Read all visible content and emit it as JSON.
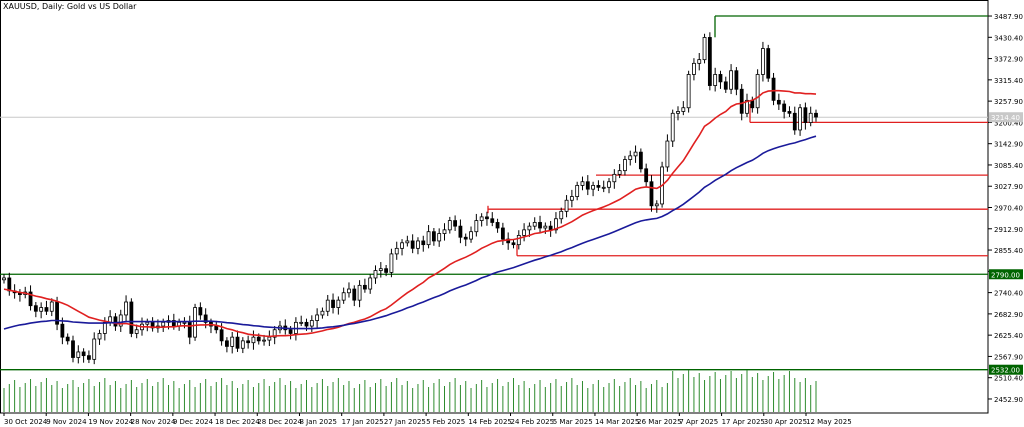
{
  "chart_data": {
    "type": "candlestick",
    "title": "XAUUSD, Daily:  Gold vs US Dollar",
    "y_axis": {
      "ylim": [
        2415,
        3515
      ],
      "ticks": [
        "3487.90",
        "3430.40",
        "3372.90",
        "3315.40",
        "3257.90",
        "3200.40",
        "3142.90",
        "3085.40",
        "3027.90",
        "2970.40",
        "2912.90",
        "2855.40",
        "2797.90",
        "2740.40",
        "2682.90",
        "2625.40",
        "2567.90",
        "2510.40",
        "2452.90"
      ],
      "current_price": "3214.40"
    },
    "x_axis": {
      "labels": [
        "30 Oct 2024",
        "9 Nov 2024",
        "19 Nov 2024",
        "28 Nov 2024",
        "9 Dec 2024",
        "18 Dec 2024",
        "28 Dec 2024",
        "8 Jan 2025",
        "17 Jan 2025",
        "27 Jan 2025",
        "5 Feb 2025",
        "14 Feb 2025",
        "24 Feb 2025",
        "5 Mar 2025",
        "14 Mar 2025",
        "26 Mar 2025",
        "7 Apr 2025",
        "17 Apr 2025",
        "30 Apr 2025",
        "12 May 2025"
      ]
    },
    "closes": [
      2780,
      2745,
      2740,
      2735,
      2742,
      2705,
      2690,
      2700,
      2690,
      2715,
      2655,
      2620,
      2610,
      2565,
      2580,
      2570,
      2560,
      2615,
      2630,
      2660,
      2675,
      2650,
      2680,
      2715,
      2630,
      2640,
      2655,
      2660,
      2645,
      2650,
      2660,
      2665,
      2650,
      2660,
      2660,
      2620,
      2700,
      2680,
      2660,
      2650,
      2640,
      2610,
      2595,
      2620,
      2590,
      2610,
      2605,
      2620,
      2610,
      2612,
      2620,
      2640,
      2650,
      2640,
      2630,
      2660,
      2660,
      2650,
      2665,
      2680,
      2690,
      2720,
      2700,
      2720,
      2740,
      2750,
      2720,
      2760,
      2750,
      2780,
      2800,
      2805,
      2795,
      2845,
      2860,
      2875,
      2880,
      2860,
      2880,
      2870,
      2905,
      2880,
      2900,
      2910,
      2935,
      2920,
      2890,
      2885,
      2905,
      2935,
      2945,
      2940,
      2930,
      2915,
      2885,
      2875,
      2870,
      2895,
      2910,
      2920,
      2930,
      2915,
      2920,
      2910,
      2940,
      2960,
      2990,
      3000,
      3030,
      3040,
      3020,
      3030,
      3025,
      3025,
      3040,
      3060,
      3070,
      3100,
      3110,
      3120,
      3075,
      3040,
      2975,
      2980,
      3080,
      3150,
      3225,
      3230,
      3240,
      3330,
      3360,
      3370,
      3430,
      3300,
      3330,
      3310,
      3290,
      3340,
      3290,
      3225,
      3260,
      3240,
      3330,
      3400,
      3320,
      3260,
      3250,
      3230,
      3225,
      3180,
      3240,
      3200,
      3225,
      3215
    ],
    "series": [
      {
        "name": "",
        "color": "#e02020",
        "values": [
          2750,
          2747,
          2744,
          2741,
          2739,
          2735,
          2731,
          2728,
          2724,
          2721,
          2717,
          2712,
          2706,
          2698,
          2690,
          2682,
          2674,
          2670,
          2666,
          2663,
          2660,
          2657,
          2656,
          2657,
          2654,
          2651,
          2648,
          2648,
          2647,
          2647,
          2647,
          2648,
          2648,
          2650,
          2651,
          2650,
          2652,
          2653,
          2653,
          2654,
          2652,
          2648,
          2643,
          2640,
          2635,
          2632,
          2628,
          2626,
          2625,
          2623,
          2622,
          2623,
          2624,
          2624,
          2625,
          2627,
          2628,
          2629,
          2631,
          2634,
          2637,
          2641,
          2643,
          2647,
          2652,
          2657,
          2660,
          2665,
          2669,
          2675,
          2683,
          2691,
          2697,
          2707,
          2718,
          2729,
          2740,
          2749,
          2759,
          2768,
          2780,
          2788,
          2797,
          2806,
          2816,
          2824,
          2830,
          2836,
          2843,
          2851,
          2860,
          2867,
          2874,
          2879,
          2881,
          2883,
          2884,
          2887,
          2891,
          2895,
          2900,
          2902,
          2906,
          2908,
          2913,
          2918,
          2925,
          2932,
          2941,
          2950,
          2956,
          2962,
          2967,
          2972,
          2978,
          2985,
          2992,
          3001,
          3010,
          3020,
          3024,
          3026,
          3024,
          3022,
          3030,
          3044,
          3063,
          3080,
          3097,
          3120,
          3143,
          3165,
          3190,
          3200,
          3212,
          3222,
          3230,
          3243,
          3250,
          3252,
          3257,
          3260,
          3268,
          3280,
          3285,
          3286,
          3286,
          3285,
          3284,
          3280,
          3280,
          3278,
          3278,
          3277
        ]
      },
      {
        "name": "",
        "color": "#1a1a9a",
        "values": [
          2642,
          2646,
          2650,
          2653,
          2655,
          2658,
          2660,
          2662,
          2663,
          2665,
          2665,
          2664,
          2663,
          2661,
          2660,
          2659,
          2658,
          2658,
          2658,
          2658,
          2659,
          2659,
          2660,
          2662,
          2662,
          2662,
          2662,
          2662,
          2662,
          2662,
          2662,
          2662,
          2662,
          2662,
          2662,
          2662,
          2663,
          2663,
          2663,
          2663,
          2662,
          2661,
          2659,
          2658,
          2656,
          2654,
          2653,
          2651,
          2650,
          2648,
          2647,
          2646,
          2645,
          2644,
          2643,
          2643,
          2643,
          2643,
          2643,
          2644,
          2645,
          2647,
          2648,
          2650,
          2652,
          2655,
          2657,
          2660,
          2663,
          2666,
          2670,
          2674,
          2678,
          2683,
          2688,
          2693,
          2699,
          2704,
          2710,
          2715,
          2721,
          2727,
          2732,
          2738,
          2745,
          2751,
          2756,
          2761,
          2767,
          2773,
          2780,
          2785,
          2791,
          2796,
          2800,
          2804,
          2808,
          2813,
          2818,
          2823,
          2828,
          2832,
          2837,
          2841,
          2846,
          2851,
          2857,
          2862,
          2868,
          2874,
          2879,
          2884,
          2889,
          2894,
          2899,
          2905,
          2911,
          2917,
          2923,
          2929,
          2934,
          2937,
          2939,
          2941,
          2946,
          2953,
          2962,
          2970,
          2979,
          2990,
          3001,
          3012,
          3025,
          3034,
          3044,
          3052,
          3060,
          3070,
          3078,
          3085,
          3092,
          3098,
          3107,
          3117,
          3124,
          3129,
          3134,
          3138,
          3142,
          3145,
          3150,
          3154,
          3159,
          3163
        ]
      }
    ],
    "levels": [
      {
        "value": "3487.90",
        "color": "#006400"
      },
      {
        "value": "3200.40",
        "color": "#e02020"
      },
      {
        "value": "3057.90",
        "color": "#e02020"
      },
      {
        "value": "2965.90",
        "color": "#e02020"
      },
      {
        "value": "2840.00",
        "color": "#e02020"
      },
      {
        "value": "2790.00",
        "color": "#006400",
        "label": "2790.00"
      },
      {
        "value": "2532.00",
        "color": "#006400",
        "label": "2532.00"
      }
    ]
  }
}
